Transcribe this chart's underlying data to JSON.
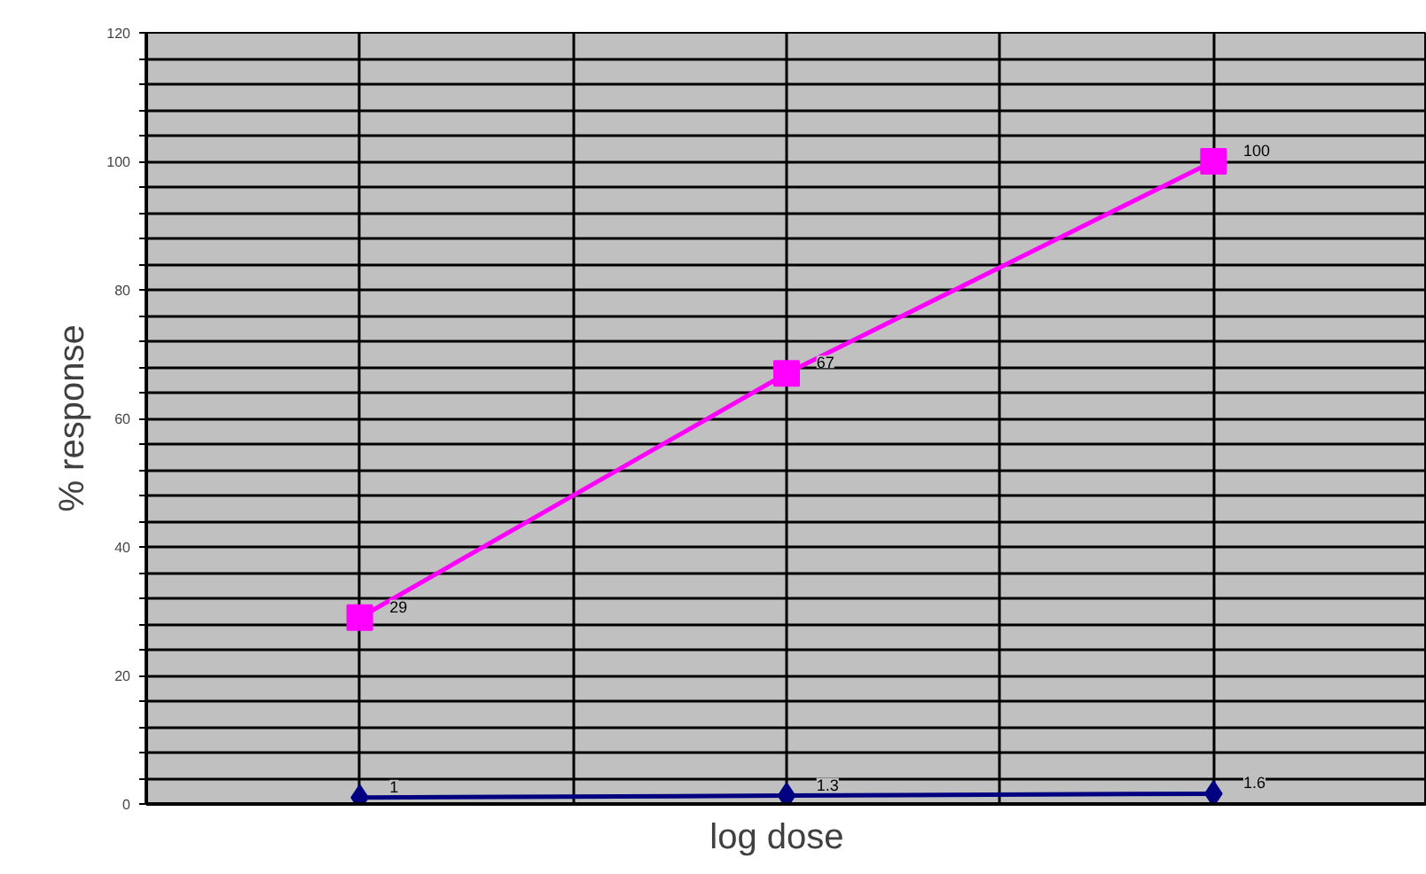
{
  "chart_data": {
    "type": "line",
    "xlabel": "log   dose",
    "ylabel": "% response",
    "categories": [
      null,
      null,
      null
    ],
    "series": [
      {
        "color": "#ff00ff",
        "marker": "square",
        "values": [
          29,
          67,
          100
        ]
      },
      {
        "color": "#000080",
        "marker": "diamond",
        "values": [
          1,
          1.3,
          1.6
        ]
      }
    ],
    "ylim": [
      0,
      120
    ],
    "yticks": [
      0,
      {
        "value": 4,
        "label": null
      },
      {
        "value": 8,
        "label": null
      },
      {
        "value": 12,
        "label": null
      },
      {
        "value": 16,
        "label": null
      },
      20,
      {
        "value": 24,
        "label": null
      },
      {
        "value": 28,
        "label": null
      },
      {
        "value": 32,
        "label": null
      },
      {
        "value": 36,
        "label": null
      },
      40,
      {
        "value": 44,
        "label": null
      },
      {
        "value": 48,
        "label": null
      },
      {
        "value": 52,
        "label": null
      },
      {
        "value": 56,
        "label": null
      },
      60,
      {
        "value": 64,
        "label": null
      },
      {
        "value": 68,
        "label": null
      },
      {
        "value": 72,
        "label": null
      },
      {
        "value": 76,
        "label": null
      },
      80,
      {
        "value": 84,
        "label": null
      },
      {
        "value": 88,
        "label": null
      },
      {
        "value": 92,
        "label": null
      },
      {
        "value": 96,
        "label": null
      },
      100,
      {
        "value": 104,
        "label": null
      },
      {
        "value": 108,
        "label": null
      },
      {
        "value": 112,
        "label": null
      },
      {
        "value": 116,
        "label": null
      },
      120
    ],
    "grid": true,
    "data_labels": true,
    "tick_labels": "y",
    "line_style": "solid"
  }
}
